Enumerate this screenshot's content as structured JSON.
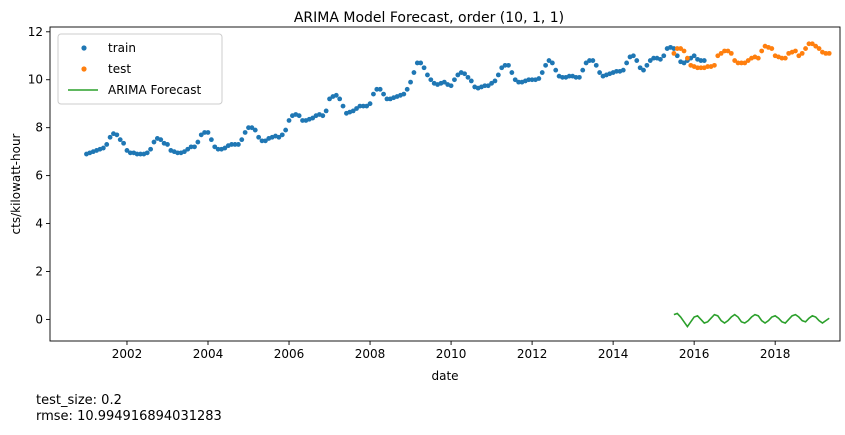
{
  "chart_data": {
    "type": "line",
    "title": "ARIMA Model Forecast, order (10, 1, 1)",
    "xlabel": "date",
    "ylabel": "cts/kilowatt-hour",
    "xlim": [
      2000.1,
      2019.6
    ],
    "ylim": [
      -0.9,
      12.2
    ],
    "x_ticks": [
      2002,
      2004,
      2006,
      2008,
      2010,
      2012,
      2014,
      2016,
      2018
    ],
    "y_ticks": [
      0,
      2,
      4,
      6,
      8,
      10,
      12
    ],
    "grid": false,
    "legend": "top-left",
    "series": [
      {
        "name": "train",
        "style": "markers",
        "color": "#1f77b4",
        "start": 2001.0,
        "step_years": 0.0833333,
        "values": [
          6.9,
          6.95,
          7.0,
          7.05,
          7.1,
          7.15,
          7.3,
          7.6,
          7.75,
          7.7,
          7.5,
          7.35,
          7.05,
          6.95,
          6.95,
          6.9,
          6.9,
          6.9,
          6.95,
          7.1,
          7.4,
          7.55,
          7.5,
          7.35,
          7.3,
          7.05,
          7.0,
          6.95,
          6.95,
          7.0,
          7.1,
          7.2,
          7.2,
          7.4,
          7.7,
          7.8,
          7.8,
          7.5,
          7.2,
          7.1,
          7.1,
          7.15,
          7.25,
          7.3,
          7.3,
          7.3,
          7.5,
          7.8,
          8.0,
          8.0,
          7.9,
          7.6,
          7.45,
          7.45,
          7.55,
          7.6,
          7.65,
          7.6,
          7.7,
          7.9,
          8.3,
          8.5,
          8.55,
          8.5,
          8.3,
          8.3,
          8.35,
          8.4,
          8.5,
          8.55,
          8.5,
          8.7,
          9.2,
          9.3,
          9.35,
          9.2,
          8.9,
          8.6,
          8.65,
          8.7,
          8.8,
          8.9,
          8.9,
          8.9,
          9.0,
          9.4,
          9.6,
          9.6,
          9.4,
          9.2,
          9.2,
          9.25,
          9.3,
          9.35,
          9.4,
          9.6,
          9.9,
          10.3,
          10.7,
          10.7,
          10.5,
          10.2,
          10.0,
          9.85,
          9.8,
          9.85,
          9.9,
          9.8,
          9.75,
          10.0,
          10.2,
          10.3,
          10.25,
          10.1,
          9.95,
          9.7,
          9.65,
          9.7,
          9.75,
          9.75,
          9.85,
          9.95,
          10.2,
          10.5,
          10.6,
          10.6,
          10.3,
          10.0,
          9.9,
          9.9,
          9.95,
          10.0,
          10.0,
          10.0,
          10.05,
          10.3,
          10.6,
          10.8,
          10.7,
          10.4,
          10.15,
          10.1,
          10.1,
          10.15,
          10.15,
          10.1,
          10.1,
          10.4,
          10.7,
          10.8,
          10.8,
          10.6,
          10.3,
          10.15,
          10.2,
          10.25,
          10.3,
          10.35,
          10.35,
          10.4,
          10.7,
          10.95,
          11.0,
          10.8,
          10.5,
          10.4,
          10.6,
          10.8,
          10.9,
          10.9,
          10.85,
          11.0,
          11.3,
          11.35,
          11.3,
          11.0,
          10.75,
          10.7,
          10.8,
          10.9,
          11.0,
          10.85,
          10.8,
          10.8
        ]
      },
      {
        "name": "test",
        "style": "markers",
        "color": "#ff7f0e",
        "start": 2015.5,
        "step_years": 0.0833333,
        "values": [
          11.1,
          11.3,
          11.3,
          11.2,
          10.9,
          10.6,
          10.55,
          10.5,
          10.5,
          10.5,
          10.55,
          10.55,
          10.6,
          11.0,
          11.1,
          11.2,
          11.2,
          11.1,
          10.8,
          10.7,
          10.7,
          10.7,
          10.8,
          10.9,
          10.95,
          10.9,
          11.2,
          11.4,
          11.35,
          11.3,
          11.0,
          10.95,
          10.9,
          10.9,
          11.1,
          11.15,
          11.2,
          11.0,
          11.1,
          11.3,
          11.5,
          11.5,
          11.4,
          11.3,
          11.15,
          11.1,
          11.1
        ]
      },
      {
        "name": "ARIMA Forecast",
        "style": "line",
        "color": "#2ca02c",
        "start": 2015.5,
        "step_years": 0.0833333,
        "values": [
          0.2,
          0.25,
          0.1,
          -0.1,
          -0.3,
          -0.1,
          0.1,
          0.15,
          0.0,
          -0.15,
          -0.1,
          0.05,
          0.2,
          0.15,
          -0.05,
          -0.15,
          -0.05,
          0.1,
          0.2,
          0.1,
          -0.1,
          -0.15,
          -0.05,
          0.1,
          0.2,
          0.15,
          -0.05,
          -0.15,
          -0.05,
          0.1,
          0.15,
          0.05,
          -0.1,
          -0.15,
          0.0,
          0.15,
          0.2,
          0.1,
          -0.05,
          -0.1,
          0.05,
          0.15,
          0.1,
          -0.05,
          -0.15,
          -0.05,
          0.05
        ]
      }
    ]
  },
  "notes": {
    "test_size": "test_size: 0.2",
    "rmse": "rmse: 10.994916894031283"
  }
}
